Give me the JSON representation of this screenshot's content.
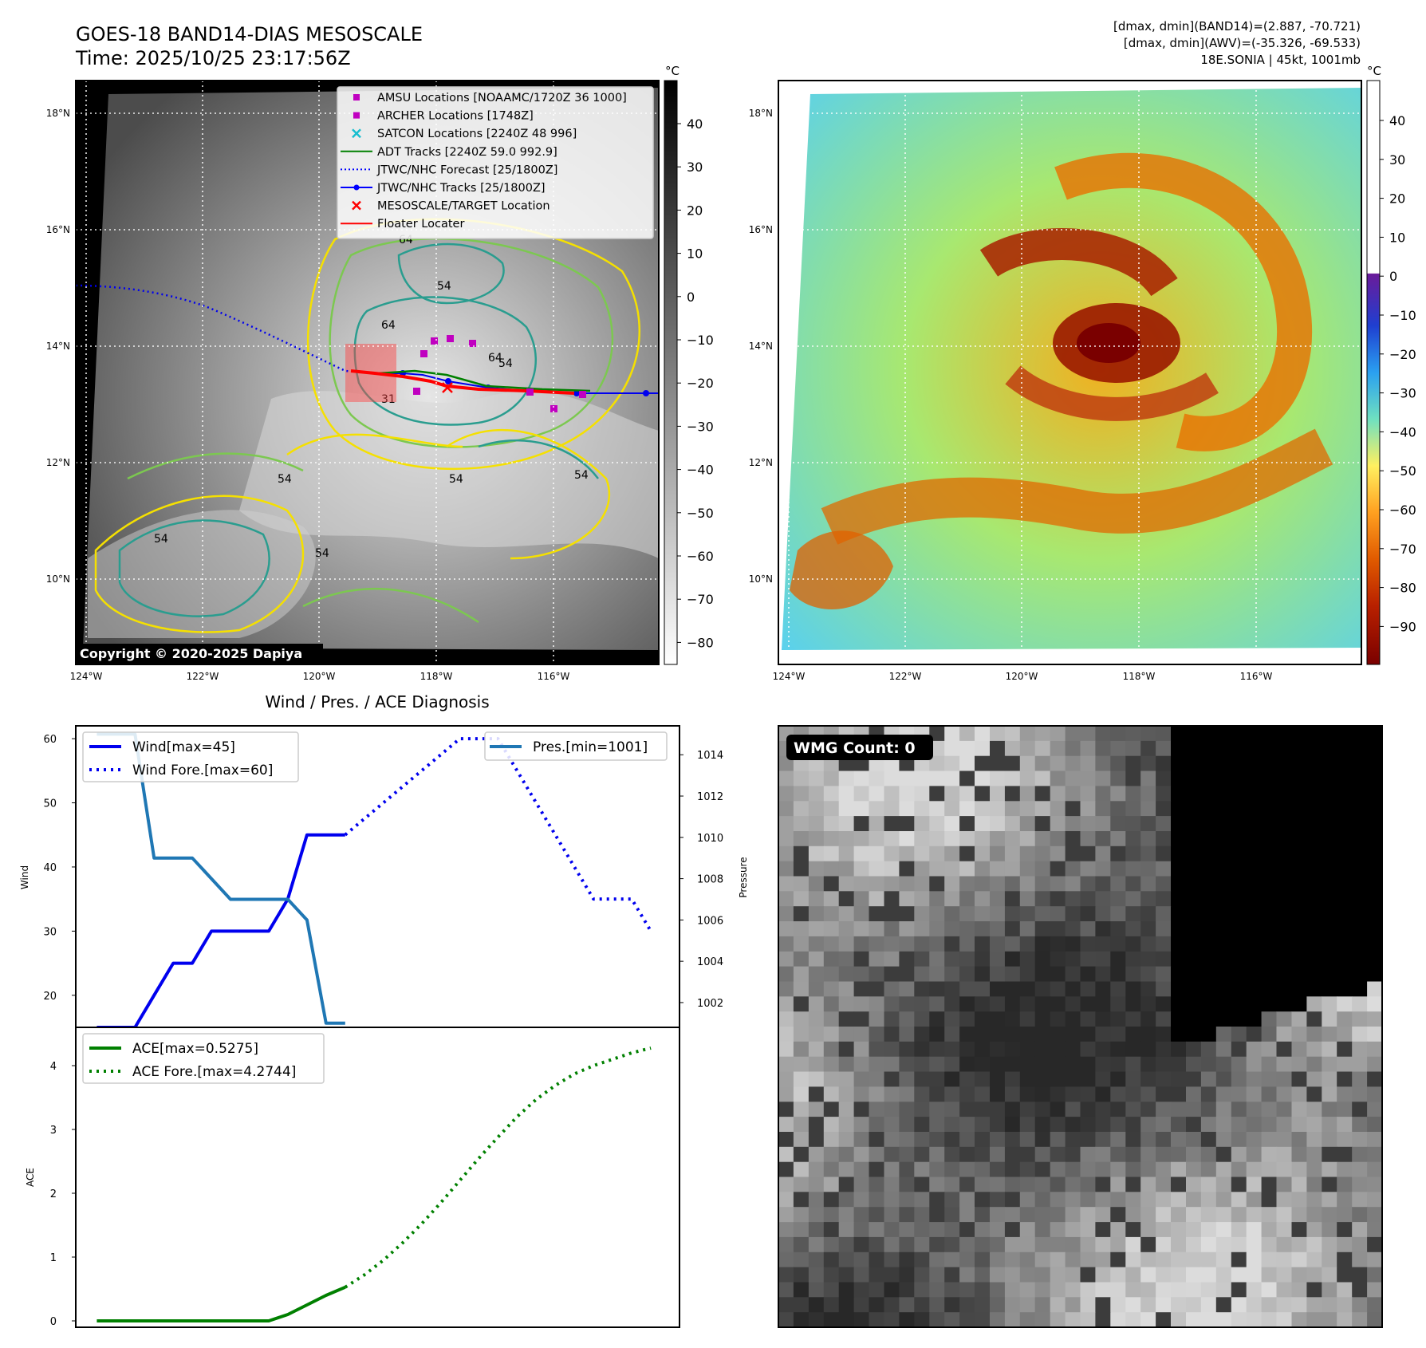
{
  "header": {
    "title": "GOES-18 BAND14-DIAS MESOSCALE",
    "time": "Time: 2025/10/25 23:17:56Z",
    "stats": [
      "[dmax, dmin](BAND14)=(2.887, -70.721)",
      "[dmax, dmin](AWV)=(-35.326, -69.533)",
      "18E.SONIA | 45kt, 1001mb"
    ]
  },
  "map_axes": {
    "lon_labels": [
      "124°W",
      "122°W",
      "120°W",
      "118°W",
      "116°W"
    ],
    "lat_labels": [
      "18°N",
      "16°N",
      "14°N",
      "12°N",
      "10°N"
    ]
  },
  "ir_panel": {
    "legend": [
      {
        "label": "AMSU Locations [NOAAMC/1720Z 36 1000]",
        "marker": "square",
        "color": "#c000c0"
      },
      {
        "label": "ARCHER Locations [1748Z]",
        "marker": "square",
        "color": "#c000c0"
      },
      {
        "label": "SATCON Locations [2240Z 48 996]",
        "marker": "x",
        "color": "#17becf"
      },
      {
        "label": "ADT Tracks [2240Z 59.0 992.9]",
        "marker": "line",
        "color": "#008000"
      },
      {
        "label": "JTWC/NHC Forecast [25/1800Z]",
        "marker": "dotted",
        "color": "#0000ff"
      },
      {
        "label": "JTWC/NHC Tracks [25/1800Z]",
        "marker": "line-dot",
        "color": "#0000ff"
      },
      {
        "label": "MESOSCALE/TARGET Location",
        "marker": "x",
        "color": "#ff0000"
      },
      {
        "label": "Floater Locater",
        "marker": "line",
        "color": "#ff0000"
      }
    ],
    "contour_labels": [
      "64",
      "54",
      "54",
      "64",
      "64",
      "54",
      "54",
      "54",
      "54",
      "54",
      "31"
    ],
    "copyright": "Copyright © 2020-2025 Dapiya",
    "colorbar": {
      "unit": "°C",
      "ticks": [
        "40",
        "30",
        "20",
        "10",
        "0",
        "−10",
        "−20",
        "−30",
        "−40",
        "−50",
        "−60",
        "−70",
        "−80"
      ]
    }
  },
  "dias_panel": {
    "colorbar": {
      "unit": "°C",
      "ticks": [
        "40",
        "30",
        "20",
        "10",
        "0",
        "−10",
        "−20",
        "−30",
        "−40",
        "−50",
        "−60",
        "−70",
        "−80",
        "−90"
      ]
    }
  },
  "wmg_panel": {
    "label": "WMG Count: 0"
  },
  "diag": {
    "title": "Wind / Pres. / ACE Diagnosis"
  },
  "chart_data": [
    {
      "type": "line",
      "title": "Wind / Pres. / ACE Diagnosis",
      "ylabel": "Wind",
      "y2label": "Pressure",
      "ylim": [
        15,
        62
      ],
      "y2lim": [
        1000.8,
        1015.4
      ],
      "yticks": [
        20,
        30,
        40,
        50,
        60
      ],
      "y2ticks": [
        1002,
        1004,
        1006,
        1008,
        1010,
        1012,
        1014
      ],
      "legend_left": "upper-left",
      "legend_right": "upper-right",
      "series": [
        {
          "name": "Wind[max=45]",
          "axis": "left",
          "style": "solid",
          "color": "#0000ee",
          "x": [
            0,
            1,
            2,
            3,
            4,
            5,
            6,
            7,
            8,
            9,
            10,
            11,
            12,
            13
          ],
          "values": [
            15,
            15,
            15,
            20,
            25,
            25,
            30,
            30,
            30,
            30,
            35,
            45,
            45,
            45
          ]
        },
        {
          "name": "Wind Fore.[max=60]",
          "axis": "left",
          "style": "dotted",
          "color": "#0000ee",
          "x": [
            13,
            14,
            15,
            16,
            17,
            18,
            19,
            20,
            21,
            22,
            23,
            24,
            25,
            26,
            27,
            28,
            29
          ],
          "values": [
            45,
            47.5,
            50,
            52.5,
            55,
            57.5,
            60,
            60,
            60,
            55,
            50,
            45,
            40,
            35,
            35,
            35,
            30
          ]
        },
        {
          "name": "Pres.[min=1001]",
          "axis": "right",
          "style": "solid",
          "color": "#1f77b4",
          "x": [
            0,
            1,
            2,
            3,
            4,
            5,
            6,
            7,
            8,
            9,
            10,
            11,
            12,
            13
          ],
          "values": [
            1015,
            1015,
            1015,
            1009,
            1009,
            1009,
            1008,
            1007,
            1007,
            1007,
            1007,
            1006,
            1001,
            1001
          ]
        }
      ]
    },
    {
      "type": "line",
      "ylabel": "ACE",
      "ylim": [
        -0.1,
        4.6
      ],
      "yticks": [
        0,
        1,
        2,
        3,
        4
      ],
      "legend": "upper-left",
      "series": [
        {
          "name": "ACE[max=0.5275]",
          "style": "solid",
          "color": "#008000",
          "x": [
            0,
            1,
            2,
            3,
            4,
            5,
            6,
            7,
            8,
            9,
            10,
            11,
            12,
            13
          ],
          "values": [
            0,
            0,
            0,
            0,
            0,
            0,
            0,
            0,
            0,
            0,
            0.1,
            0.25,
            0.4,
            0.5275
          ]
        },
        {
          "name": "ACE Fore.[max=4.2744]",
          "style": "dotted",
          "color": "#008000",
          "x": [
            13,
            14,
            15,
            16,
            17,
            18,
            19,
            20,
            21,
            22,
            23,
            24,
            25,
            26,
            27,
            28,
            29
          ],
          "values": [
            0.5275,
            0.72,
            0.95,
            1.22,
            1.52,
            1.85,
            2.2,
            2.55,
            2.88,
            3.2,
            3.47,
            3.69,
            3.87,
            4.0,
            4.1,
            4.2,
            4.2744
          ]
        }
      ]
    }
  ]
}
